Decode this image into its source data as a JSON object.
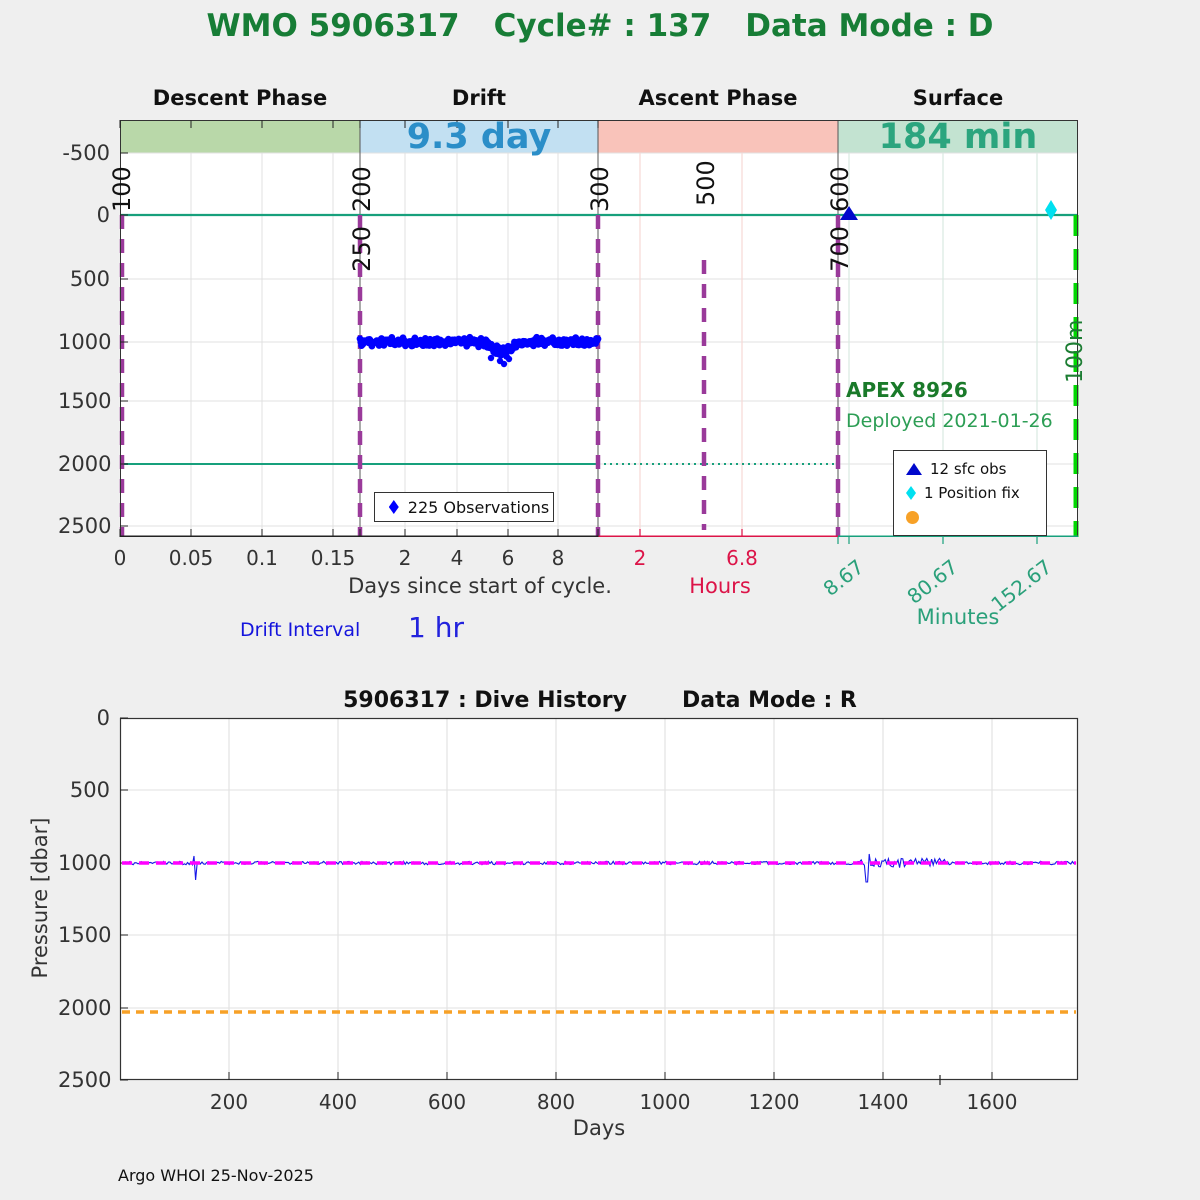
{
  "header": {
    "wmo": "WMO 5906317",
    "cycle": "Cycle# : 137",
    "mode": "Data Mode : D"
  },
  "colors": {
    "title_green": "#177d36",
    "info_green": "#2d9e55",
    "apex_green": "#1a7a2a",
    "descent_band": "#b9d8a9",
    "drift_band": "#c2e0f2",
    "ascent_band": "#f9c3ba",
    "surface_band": "#c3e3d1",
    "drift_duration_text": "#2b8ec8",
    "surface_duration_text": "#2ba57e",
    "teal_line": "#17a07c",
    "purple_dashed": "#9a3a9a",
    "lime_dashed": "#00d800",
    "obs_blue": "#0000ff",
    "sfc_obs_blue": "#0008cc",
    "position_fix_cyan": "#00e0f0",
    "orange": "#f7a127",
    "magenta": "#ff00ff",
    "hours_red": "#dc1448",
    "minutes_teal": "#2aa07a",
    "dive_line_blue": "#1616e8"
  },
  "top_chart": {
    "phase_labels": [
      "Descent Phase",
      "Drift",
      "Ascent Phase",
      "Surface"
    ],
    "phase_bands": [
      {
        "label": "Descent Phase",
        "color": "#b9d8a9",
        "duration": ""
      },
      {
        "label": "Drift",
        "color": "#c2e0f2",
        "duration": "9.3 day"
      },
      {
        "label": "Ascent Phase",
        "color": "#f9c3ba",
        "duration": ""
      },
      {
        "label": "Surface",
        "color": "#c3e3d1",
        "duration": "184 min"
      }
    ],
    "y_tick_labels": [
      "-500",
      "0",
      "500",
      "1000",
      "1500",
      "2000",
      "2500"
    ],
    "day_tick_labels": [
      "0",
      "0.05",
      "0.1",
      "0.15",
      "2",
      "4",
      "6",
      "8"
    ],
    "hour_tick_labels": [
      "2",
      "6.8"
    ],
    "minute_tick_labels": [
      "8.67",
      "80.67",
      "152.67"
    ],
    "x_axis_label_days": "Days since start of cycle.",
    "x_axis_label_hours": "Hours",
    "x_axis_label_minutes": "Minutes",
    "drift_interval": {
      "label": "Drift Interval",
      "value": "1 hr"
    },
    "float_info": {
      "line1": "APEX 8926",
      "line2": "Deployed 2021-01-26"
    },
    "mission_line_labels": [
      "100",
      "200",
      "250",
      "300",
      "500",
      "600",
      "700"
    ],
    "right_line_label": "100m",
    "obs_legend": {
      "label": "225 Observations"
    },
    "marker_legend": [
      {
        "label": "12 sfc obs"
      },
      {
        "label": "1 Position fix"
      },
      {
        "label": ""
      }
    ]
  },
  "bottom_chart": {
    "title_left": "5906317 : Dive History",
    "title_right": "Data Mode : R",
    "y_tick_labels": [
      "0",
      "500",
      "1000",
      "1500",
      "2000",
      "2500"
    ],
    "x_tick_labels": [
      "200",
      "400",
      "600",
      "800",
      "1000",
      "1200",
      "1400",
      "1600"
    ],
    "xlabel": "Days",
    "ylabel": "Pressure [dbar]"
  },
  "footer": "Argo WHOI 25-Nov-2025",
  "chart_data": [
    {
      "type": "scatter",
      "title": "WMO 5906317 Cycle# : 137 Data Mode : D",
      "y_axis": {
        "unit": "dbar",
        "range": [
          -800,
          2600
        ],
        "inverted": true,
        "ticks": [
          -500,
          0,
          500,
          1000,
          1500,
          2000,
          2500
        ]
      },
      "x_axis_segments": [
        {
          "phase": "Descent Phase",
          "unit": "days",
          "ticks": [
            0,
            0.05,
            0.1,
            0.15
          ],
          "axis_label": "Days since start of cycle."
        },
        {
          "phase": "Drift",
          "unit": "days",
          "ticks": [
            2,
            4,
            6,
            8
          ],
          "duration": "9.3 day",
          "drift_interval": "1 hr"
        },
        {
          "phase": "Ascent Phase",
          "unit": "hours",
          "ticks": [
            2,
            6.8
          ],
          "axis_label": "Hours"
        },
        {
          "phase": "Surface",
          "unit": "minutes",
          "ticks": [
            8.67,
            80.67,
            152.67
          ],
          "axis_label": "Minutes",
          "duration": "184 min"
        }
      ],
      "series": [
        {
          "name": "225 Observations",
          "marker": "diamond",
          "color": "#0000ff",
          "count": 225,
          "depth_dbar": 1000,
          "x_days_range": [
            0.17,
            9.3
          ],
          "note": "dense noisy band around 1000 dbar with small dip ~1050 near day 5"
        },
        {
          "name": "12 sfc obs",
          "marker": "triangle",
          "color": "#0008cc",
          "points": [
            {
              "y_dbar": 0,
              "at": "ascent-surface boundary"
            }
          ]
        },
        {
          "name": "1 Position fix",
          "marker": "diamond",
          "color": "#00e0f0",
          "points": [
            {
              "y_dbar": 0,
              "at": "~150 min into surface phase"
            }
          ]
        }
      ],
      "reference_lines": [
        {
          "orientation": "horizontal",
          "value_dbar": 0,
          "style": "solid",
          "color": "#17a07c",
          "extent": "full width"
        },
        {
          "orientation": "horizontal",
          "value_dbar": 2000,
          "style": "solid to day 9.3, dotted across ascent",
          "color": "#17a07c"
        },
        {
          "orientation": "vertical",
          "label": "100",
          "style": "dashed",
          "color": "#9a3a9a",
          "at": "cycle start"
        },
        {
          "orientation": "vertical",
          "label": "200 / 250",
          "style": "dashed",
          "color": "#9a3a9a",
          "at": "descent-drift boundary"
        },
        {
          "orientation": "vertical",
          "label": "300",
          "style": "dashed",
          "color": "#9a3a9a",
          "at": "drift-ascent boundary"
        },
        {
          "orientation": "vertical",
          "label": "500",
          "style": "dashed",
          "color": "#9a3a9a",
          "at": "mid-ascent"
        },
        {
          "orientation": "vertical",
          "label": "600 / 700",
          "style": "dashed",
          "color": "#9a3a9a",
          "at": "ascent-surface boundary"
        },
        {
          "orientation": "vertical",
          "label": "100m",
          "style": "dashed",
          "color": "#00d800",
          "at": "right edge"
        }
      ],
      "annotations": [
        "APEX 8926",
        "Deployed 2021-01-26",
        "Drift Interval 1 hr"
      ]
    },
    {
      "type": "line",
      "title": "5906317 : Dive History Data Mode : R",
      "xlabel": "Days",
      "ylabel": "Pressure [dbar]",
      "x_range": [
        0,
        1758
      ],
      "y_range": [
        0,
        2500
      ],
      "y_inverted": true,
      "x_ticks": [
        200,
        400,
        600,
        800,
        1000,
        1200,
        1400,
        1600
      ],
      "y_ticks": [
        0,
        500,
        1000,
        1500,
        2000,
        2500
      ],
      "series": [
        {
          "name": "park pressure history",
          "color": "#1616e8",
          "style": "solid noisy",
          "value_dbar": 1000,
          "spikes_days": [
            140,
            1370
          ],
          "noisy_region_days": [
            1350,
            1520
          ]
        },
        {
          "name": "park pressure target",
          "color": "#ff00ff",
          "style": "dashed",
          "value_dbar": 1000
        },
        {
          "name": "profile pressure target",
          "color": "#f7a127",
          "style": "dashed",
          "value_dbar": 2030
        }
      ]
    }
  ]
}
